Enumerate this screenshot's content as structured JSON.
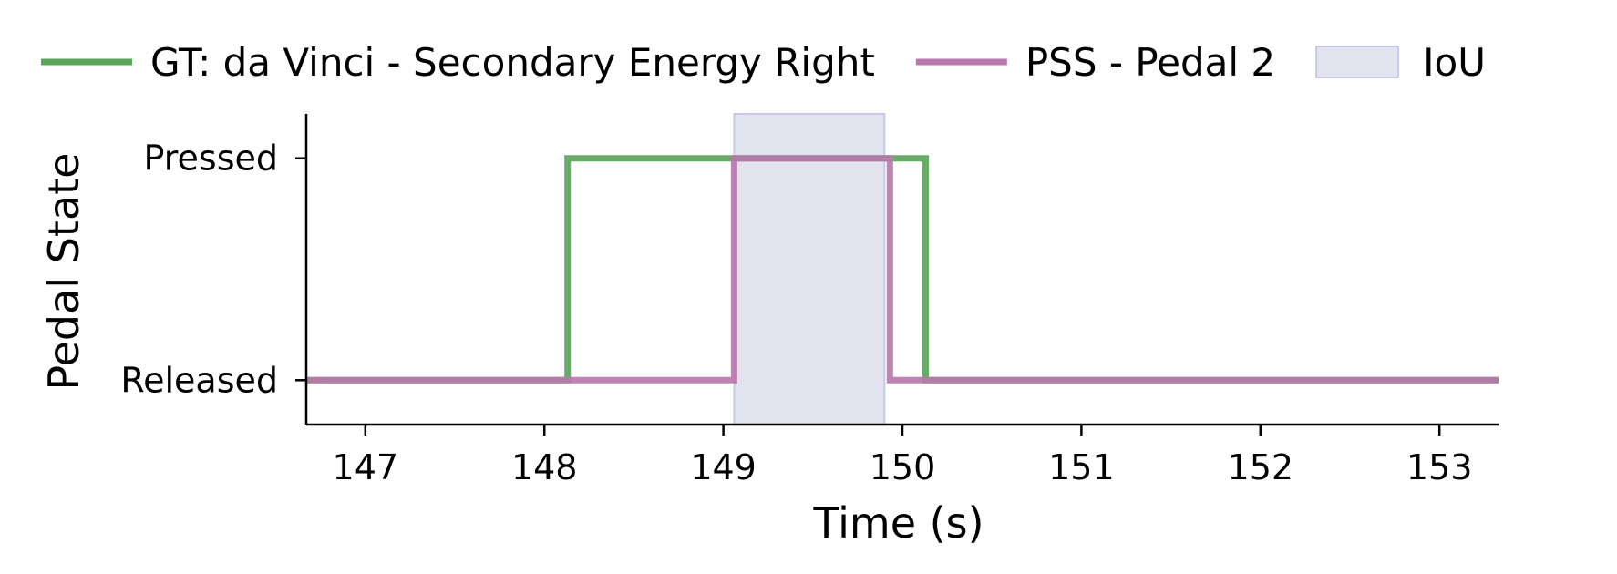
{
  "chart_data": {
    "type": "line",
    "step": true,
    "title": "",
    "xlabel": "Time (s)",
    "ylabel": "Pedal State",
    "xlim": [
      146.67,
      153.33
    ],
    "ylim": [
      -0.2,
      1.2
    ],
    "x_ticks": [
      147,
      148,
      149,
      150,
      151,
      152,
      153
    ],
    "x_tick_labels": [
      "147",
      "148",
      "149",
      "150",
      "151",
      "152",
      "153"
    ],
    "y_ticks": [
      0,
      1
    ],
    "y_tick_labels": [
      "Released",
      "Pressed"
    ],
    "grid": false,
    "legend_position": "top",
    "series": [
      {
        "name": "GT: da Vinci - Secondary Energy Right",
        "color": "#5aa55a",
        "x": [
          146.67,
          148.13,
          148.13,
          150.13,
          150.13,
          153.33
        ],
        "y": [
          0,
          0,
          1,
          1,
          0,
          0
        ]
      },
      {
        "name": "PSS - Pedal 2",
        "color": "#b877ad",
        "x": [
          146.67,
          149.06,
          149.06,
          149.93,
          149.93,
          153.33
        ],
        "y": [
          0,
          0,
          1,
          1,
          0,
          0
        ]
      }
    ],
    "shaded_regions": [
      {
        "name": "IoU",
        "x_start": 149.06,
        "x_end": 149.9,
        "color": "#e3e3ef",
        "edge_color": "#c8c8e6"
      }
    ]
  }
}
